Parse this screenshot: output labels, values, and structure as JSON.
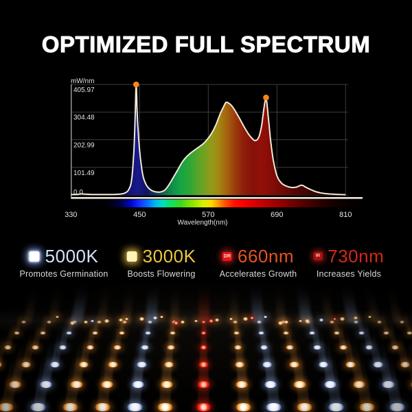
{
  "title": "OPTIMIZED FULL SPECTRUM",
  "chart": {
    "y_axis_title": "mW/nm",
    "x_axis_title": "Wavelength(nm)"
  },
  "chart_data": {
    "type": "area",
    "title": "",
    "xlabel": "Wavelength(nm)",
    "ylabel": "mW/nm",
    "xlim": [
      330,
      810
    ],
    "ylim": [
      0,
      405.97
    ],
    "grid": true,
    "x_ticks": [
      {
        "label": "330",
        "v": 330
      },
      {
        "label": "450",
        "v": 450
      },
      {
        "label": "570",
        "v": 570
      },
      {
        "label": "690",
        "v": 690
      },
      {
        "label": "810",
        "v": 810
      }
    ],
    "y_ticks": [
      {
        "label": "405.97",
        "v": 405.97
      },
      {
        "label": "304.48",
        "v": 304.48
      },
      {
        "label": "202.99",
        "v": 202.99
      },
      {
        "label": "101.49",
        "v": 101.49
      },
      {
        "label": "0.0",
        "v": 0
      }
    ],
    "x": [
      330,
      340,
      348,
      356,
      368,
      385,
      400,
      410,
      418,
      425,
      431,
      436,
      440,
      442,
      444,
      446,
      449,
      452,
      456,
      461,
      467,
      474,
      481,
      488,
      495,
      502,
      509,
      516,
      523,
      530,
      538,
      546,
      554,
      562,
      570,
      577,
      584,
      591,
      597,
      601,
      606,
      612,
      619,
      626,
      633,
      640,
      646,
      652,
      658,
      663,
      667,
      671,
      675,
      679,
      684,
      690,
      697,
      705,
      715,
      724,
      733,
      741,
      750,
      760,
      772,
      788,
      810
    ],
    "y": [
      2,
      2,
      4,
      3,
      2,
      2,
      2,
      2.5,
      4,
      8,
      20,
      55,
      160,
      270,
      402,
      290,
      190,
      125,
      70,
      40,
      23,
      14,
      11,
      12,
      20,
      40,
      65,
      90,
      116,
      136,
      152,
      165,
      177,
      190,
      209,
      231,
      261,
      299,
      325,
      340,
      337,
      325,
      302,
      276,
      249,
      225,
      209,
      200,
      211,
      252,
      314,
      354,
      285,
      200,
      124,
      71,
      46,
      34,
      28,
      29,
      36,
      28,
      19,
      11,
      6,
      3,
      1
    ],
    "peak_markers": [
      {
        "x": 444,
        "y": 402
      },
      {
        "x": 671,
        "y": 354
      }
    ],
    "peak_marker_color": "#f6861c",
    "curve_color": "#f2ead8",
    "grid_color": "#3c3c3c",
    "axis_color": "#efe9da",
    "fill_gradient": [
      {
        "wl": 330,
        "color": "#000014"
      },
      {
        "wl": 415,
        "color": "#0a0a42"
      },
      {
        "wl": 435,
        "color": "#14147a"
      },
      {
        "wl": 448,
        "color": "#18188c"
      },
      {
        "wl": 462,
        "color": "#121264"
      },
      {
        "wl": 478,
        "color": "#0e3a5c"
      },
      {
        "wl": 492,
        "color": "#0e6450"
      },
      {
        "wl": 505,
        "color": "#108a48"
      },
      {
        "wl": 520,
        "color": "#16a346"
      },
      {
        "wl": 538,
        "color": "#2fa636"
      },
      {
        "wl": 556,
        "color": "#61a426"
      },
      {
        "wl": 574,
        "color": "#8f9c1a"
      },
      {
        "wl": 588,
        "color": "#a38812"
      },
      {
        "wl": 602,
        "color": "#a5640e"
      },
      {
        "wl": 616,
        "color": "#9c3e0c"
      },
      {
        "wl": 632,
        "color": "#8f1e0a"
      },
      {
        "wl": 648,
        "color": "#851108"
      },
      {
        "wl": 664,
        "color": "#930f08"
      },
      {
        "wl": 678,
        "color": "#870c07"
      },
      {
        "wl": 695,
        "color": "#740a06"
      },
      {
        "wl": 715,
        "color": "#5c0705"
      },
      {
        "wl": 740,
        "color": "#420504"
      },
      {
        "wl": 770,
        "color": "#2b0303"
      },
      {
        "wl": 810,
        "color": "#160101"
      }
    ],
    "bar_gradient": [
      {
        "wl": 330,
        "color": "#000000"
      },
      {
        "wl": 395,
        "color": "#000005"
      },
      {
        "wl": 418,
        "color": "#00004a"
      },
      {
        "wl": 436,
        "color": "#0008c8"
      },
      {
        "wl": 450,
        "color": "#1430ff"
      },
      {
        "wl": 463,
        "color": "#0a6aff"
      },
      {
        "wl": 477,
        "color": "#00b4f0"
      },
      {
        "wl": 490,
        "color": "#00ddc0"
      },
      {
        "wl": 505,
        "color": "#10e060"
      },
      {
        "wl": 522,
        "color": "#3ed61e"
      },
      {
        "wl": 542,
        "color": "#8ce400"
      },
      {
        "wl": 562,
        "color": "#d8f000"
      },
      {
        "wl": 576,
        "color": "#ffd800"
      },
      {
        "wl": 588,
        "color": "#ff9800"
      },
      {
        "wl": 600,
        "color": "#ff5000"
      },
      {
        "wl": 615,
        "color": "#ff1400"
      },
      {
        "wl": 635,
        "color": "#f40000"
      },
      {
        "wl": 660,
        "color": "#cc0000"
      },
      {
        "wl": 685,
        "color": "#a30000"
      },
      {
        "wl": 710,
        "color": "#7c0000"
      },
      {
        "wl": 735,
        "color": "#540000"
      },
      {
        "wl": 762,
        "color": "#300000"
      },
      {
        "wl": 790,
        "color": "#120000"
      },
      {
        "wl": 840,
        "color": "#000000"
      }
    ]
  },
  "features": [
    {
      "value": "5000K",
      "label": "Promotes Germination",
      "color": "#d3e5fa",
      "icon": "cool-white-led",
      "icon_text": ""
    },
    {
      "value": "3000K",
      "label": "Boosts Flowering",
      "color": "#ecc93a",
      "icon": "warm-white-led",
      "icon_text": ""
    },
    {
      "value": "660nm",
      "label": "Accelerates Growth",
      "color": "#e65426",
      "icon": "deep-red-led",
      "icon_text": "DR"
    },
    {
      "value": "730nm",
      "label": "Increases Yields",
      "color": "#d4281c",
      "icon": "infrared-led",
      "icon_text": "IR"
    }
  ],
  "led_panel": {
    "colors": {
      "warm": "#ffb65e",
      "cool": "#dbe7ff",
      "red": "#ff3522"
    },
    "columns": [
      {
        "x": 40,
        "c": "warm"
      },
      {
        "x": 76,
        "c": "warm"
      },
      {
        "x": 112,
        "c": "cool"
      },
      {
        "x": 148,
        "c": "warm"
      },
      {
        "x": 184,
        "c": "warm"
      },
      {
        "x": 220,
        "c": "cool"
      },
      {
        "x": 254,
        "c": "warm"
      },
      {
        "x": 297,
        "c": "red"
      },
      {
        "x": 342,
        "c": "warm"
      },
      {
        "x": 376,
        "c": "cool"
      },
      {
        "x": 410,
        "c": "warm"
      },
      {
        "x": 446,
        "c": "cool"
      },
      {
        "x": 480,
        "c": "warm"
      },
      {
        "x": 514,
        "c": "cool"
      },
      {
        "x": 548,
        "c": "warm"
      },
      {
        "x": 580,
        "c": "warm"
      }
    ]
  }
}
